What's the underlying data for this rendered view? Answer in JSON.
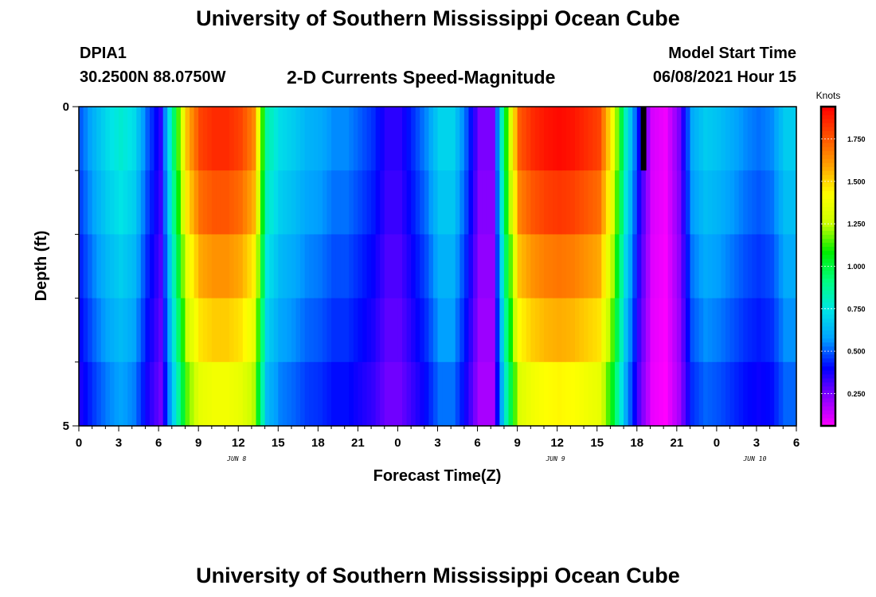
{
  "header": {
    "title": "University of Southern Mississippi Ocean Cube",
    "station_id": "DPIA1",
    "station_coords": "30.2500N  88.0750W",
    "plot_title": "2-D Currents Speed-Magnitude",
    "start_label": "Model Start Time",
    "start_value": "06/08/2021 Hour 15"
  },
  "footer": {
    "title": "University of Southern Mississippi Ocean Cube"
  },
  "chart_data": {
    "type": "heatmap",
    "title": "2-D Currents Speed-Magnitude",
    "xlabel": "Forecast Time(Z)",
    "ylabel": "Depth (ft)",
    "x_range_hours": [
      0,
      54
    ],
    "ylim": [
      0,
      5
    ],
    "x_tick_labels": [
      "0",
      "3",
      "6",
      "9",
      "12",
      "15",
      "18",
      "21",
      "0",
      "3",
      "6",
      "9",
      "12",
      "15",
      "18",
      "21",
      "0",
      "3",
      "6"
    ],
    "y_tick_labels": [
      "0",
      "5"
    ],
    "date_labels": [
      {
        "text": "JUN 8",
        "hour": 12
      },
      {
        "text": "JUN 9",
        "hour": 36
      },
      {
        "text": "JUN 10",
        "hour": 51
      }
    ],
    "depth_layers": [
      0.5,
      1.5,
      2.5,
      3.5,
      4.5
    ],
    "hours": [
      0,
      1,
      2,
      3,
      4,
      5,
      6,
      7,
      8,
      9,
      10,
      11,
      12,
      13,
      14,
      15,
      16,
      17,
      18,
      19,
      20,
      21,
      22,
      23,
      24,
      25,
      26,
      27,
      28,
      29,
      30,
      31,
      32,
      33,
      34,
      35,
      36,
      37,
      38,
      39,
      40,
      41,
      42,
      43,
      44,
      45,
      46,
      47,
      48,
      49,
      50,
      51,
      52,
      53
    ],
    "surface_speed_knots": [
      0.5,
      0.62,
      0.72,
      0.78,
      0.72,
      0.5,
      0.35,
      0.95,
      1.55,
      1.8,
      1.85,
      1.85,
      1.8,
      1.65,
      0.85,
      0.72,
      0.68,
      0.62,
      0.6,
      0.55,
      0.55,
      0.5,
      0.45,
      0.35,
      0.35,
      0.45,
      0.55,
      0.7,
      0.7,
      0.5,
      0.25,
      0.25,
      1.1,
      1.75,
      1.85,
      1.9,
      1.92,
      1.9,
      1.85,
      1.8,
      1.4,
      0.8,
      0.4,
      0.12,
      0.08,
      0.25,
      0.6,
      0.68,
      0.65,
      0.6,
      0.55,
      0.52,
      0.55,
      0.68
    ],
    "depth_factors": [
      1.0,
      0.95,
      0.88,
      0.82,
      0.75
    ],
    "missing_data": [
      {
        "hour": 42.5,
        "depth_layer": 0
      }
    ],
    "colorbar": {
      "label": "Knots",
      "range": [
        0.06,
        1.94
      ],
      "tick_values": [
        0.25,
        0.5,
        0.75,
        1.0,
        1.25,
        1.5,
        1.75
      ],
      "tick_labels": [
        "0.250",
        "0.500",
        "0.750",
        "1.000",
        "1.250",
        "1.500",
        "1.750"
      ],
      "colors": [
        "#ff00ff",
        "#8a00ff",
        "#0000ff",
        "#00a0ff",
        "#00e6e6",
        "#00ff80",
        "#00ee00",
        "#ccff00",
        "#ffff00",
        "#ffa000",
        "#ff5000",
        "#ff0000"
      ]
    }
  }
}
